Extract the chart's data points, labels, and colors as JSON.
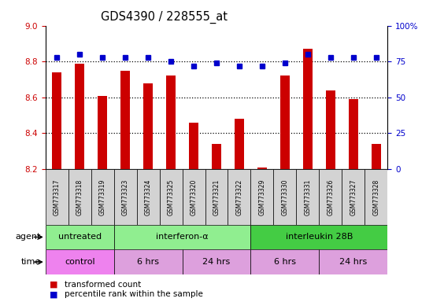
{
  "title": "GDS4390 / 228555_at",
  "samples": [
    "GSM773317",
    "GSM773318",
    "GSM773319",
    "GSM773323",
    "GSM773324",
    "GSM773325",
    "GSM773320",
    "GSM773321",
    "GSM773322",
    "GSM773329",
    "GSM773330",
    "GSM773331",
    "GSM773326",
    "GSM773327",
    "GSM773328"
  ],
  "red_values": [
    8.74,
    8.79,
    8.61,
    8.75,
    8.68,
    8.72,
    8.46,
    8.34,
    8.48,
    8.21,
    8.72,
    8.87,
    8.64,
    8.59,
    8.34
  ],
  "blue_values": [
    78,
    80,
    78,
    78,
    78,
    75,
    72,
    74,
    72,
    72,
    74,
    80,
    78,
    78,
    78
  ],
  "ymin": 8.2,
  "ymax": 9.0,
  "y2min": 0,
  "y2max": 100,
  "yticks_left": [
    8.2,
    8.4,
    8.6,
    8.8,
    9.0
  ],
  "yticks_right": [
    0,
    25,
    50,
    75,
    100
  ],
  "dotted_lines": [
    8.4,
    8.6,
    8.8
  ],
  "agent_groups": [
    {
      "label": "untreated",
      "start": 0,
      "end": 3,
      "color": "#90EE90"
    },
    {
      "label": "interferon-α",
      "start": 3,
      "end": 9,
      "color": "#90EE90"
    },
    {
      "label": "interleukin 28B",
      "start": 9,
      "end": 15,
      "color": "#44CC44"
    }
  ],
  "time_groups": [
    {
      "label": "control",
      "start": 0,
      "end": 3,
      "color": "#EE82EE"
    },
    {
      "label": "6 hrs",
      "start": 3,
      "end": 6,
      "color": "#DDA0DD"
    },
    {
      "label": "24 hrs",
      "start": 6,
      "end": 9,
      "color": "#DDA0DD"
    },
    {
      "label": "6 hrs",
      "start": 9,
      "end": 12,
      "color": "#DDA0DD"
    },
    {
      "label": "24 hrs",
      "start": 12,
      "end": 15,
      "color": "#DDA0DD"
    }
  ],
  "bar_color": "#CC0000",
  "dot_color": "#0000CC",
  "tick_color_left": "#CC0000",
  "tick_color_right": "#0000CC",
  "bar_width": 0.4
}
